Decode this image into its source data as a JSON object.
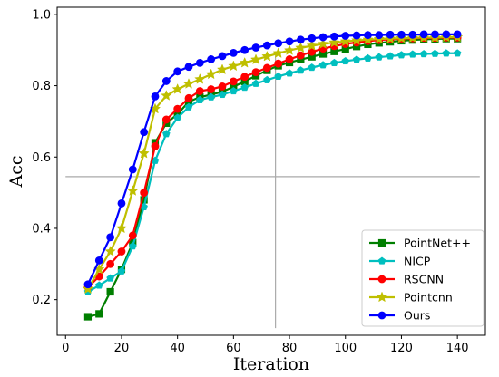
{
  "chart_data": {
    "type": "line",
    "title": "",
    "xlabel": "Iteration",
    "ylabel": "Acc",
    "xlim": [
      -3,
      150
    ],
    "ylim": [
      0.1,
      1.02
    ],
    "xticks": [
      0,
      20,
      40,
      60,
      80,
      100,
      120,
      140
    ],
    "xtick_labels": [
      "0",
      "20",
      "40",
      "60",
      "80",
      "100",
      "120",
      "140"
    ],
    "yticks": [
      0.2,
      0.4,
      0.6,
      0.8,
      1.0
    ],
    "ytick_labels": [
      "0.2",
      "0.4",
      "0.6",
      "0.8",
      "1.0"
    ],
    "grid": false,
    "legend_position": "lower-right",
    "x": [
      8,
      12,
      16,
      20,
      24,
      28,
      32,
      36,
      40,
      44,
      48,
      52,
      56,
      60,
      64,
      68,
      72,
      76,
      80,
      84,
      88,
      92,
      96,
      100,
      104,
      108,
      112,
      116,
      120,
      124,
      128,
      132,
      136,
      140
    ],
    "series": [
      {
        "name": "PointNet++",
        "color": "#007f00",
        "marker": "square",
        "values": [
          0.152,
          0.16,
          0.222,
          0.285,
          0.36,
          0.48,
          0.64,
          0.695,
          0.72,
          0.755,
          0.768,
          0.775,
          0.783,
          0.797,
          0.812,
          0.828,
          0.843,
          0.856,
          0.865,
          0.873,
          0.881,
          0.889,
          0.896,
          0.903,
          0.91,
          0.916,
          0.92,
          0.923,
          0.926,
          0.928,
          0.93,
          0.931,
          0.932,
          0.932
        ]
      },
      {
        "name": "NICP",
        "color": "#00bfbf",
        "marker": "pentagon",
        "values": [
          0.222,
          0.24,
          0.26,
          0.28,
          0.35,
          0.46,
          0.59,
          0.665,
          0.71,
          0.74,
          0.76,
          0.768,
          0.775,
          0.785,
          0.795,
          0.806,
          0.816,
          0.826,
          0.835,
          0.843,
          0.851,
          0.858,
          0.864,
          0.869,
          0.873,
          0.877,
          0.88,
          0.883,
          0.886,
          0.888,
          0.889,
          0.89,
          0.891,
          0.891
        ]
      },
      {
        "name": "RSCNN",
        "color": "#ff0000",
        "marker": "circle",
        "values": [
          0.235,
          0.265,
          0.3,
          0.335,
          0.38,
          0.5,
          0.63,
          0.705,
          0.735,
          0.765,
          0.785,
          0.79,
          0.798,
          0.812,
          0.825,
          0.838,
          0.85,
          0.862,
          0.874,
          0.885,
          0.895,
          0.904,
          0.911,
          0.917,
          0.921,
          0.925,
          0.928,
          0.93,
          0.932,
          0.933,
          0.934,
          0.934,
          0.935,
          0.935
        ]
      },
      {
        "name": "Pointcnn",
        "color": "#bfbf00",
        "marker": "star",
        "values": [
          0.23,
          0.285,
          0.335,
          0.4,
          0.505,
          0.61,
          0.735,
          0.772,
          0.79,
          0.805,
          0.818,
          0.832,
          0.845,
          0.855,
          0.864,
          0.873,
          0.882,
          0.891,
          0.899,
          0.906,
          0.912,
          0.917,
          0.921,
          0.924,
          0.927,
          0.929,
          0.931,
          0.932,
          0.933,
          0.934,
          0.935,
          0.935,
          0.936,
          0.936
        ]
      },
      {
        "name": "Ours",
        "color": "#0000ff",
        "marker": "circle",
        "values": [
          0.243,
          0.31,
          0.375,
          0.47,
          0.565,
          0.67,
          0.77,
          0.813,
          0.84,
          0.853,
          0.864,
          0.874,
          0.883,
          0.892,
          0.9,
          0.907,
          0.913,
          0.919,
          0.924,
          0.929,
          0.933,
          0.936,
          0.938,
          0.94,
          0.941,
          0.942,
          0.942,
          0.943,
          0.943,
          0.943,
          0.944,
          0.944,
          0.944,
          0.944
        ]
      }
    ],
    "crosshair": {
      "x": 75,
      "y": 0.545,
      "x_range": [
        0,
        148
      ],
      "y_range": [
        0.12,
        0.89
      ],
      "color": "#aaaaaa"
    }
  }
}
